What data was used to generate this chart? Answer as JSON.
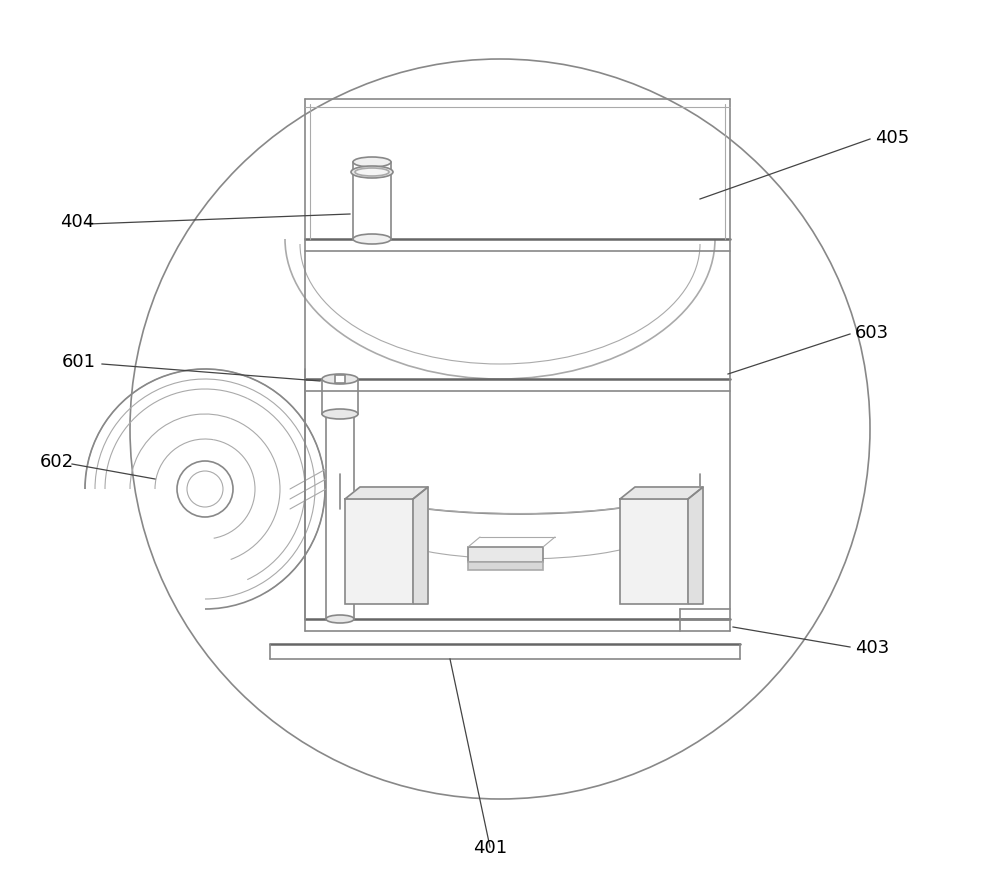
{
  "bg_color": "#ffffff",
  "line_color": "#aaaaaa",
  "line_color_med": "#888888",
  "line_color_dark": "#666666",
  "lw_thin": 0.8,
  "lw_med": 1.2,
  "lw_thick": 1.8,
  "fig_width": 10.0,
  "fig_height": 8.78,
  "label_fontsize": 13
}
